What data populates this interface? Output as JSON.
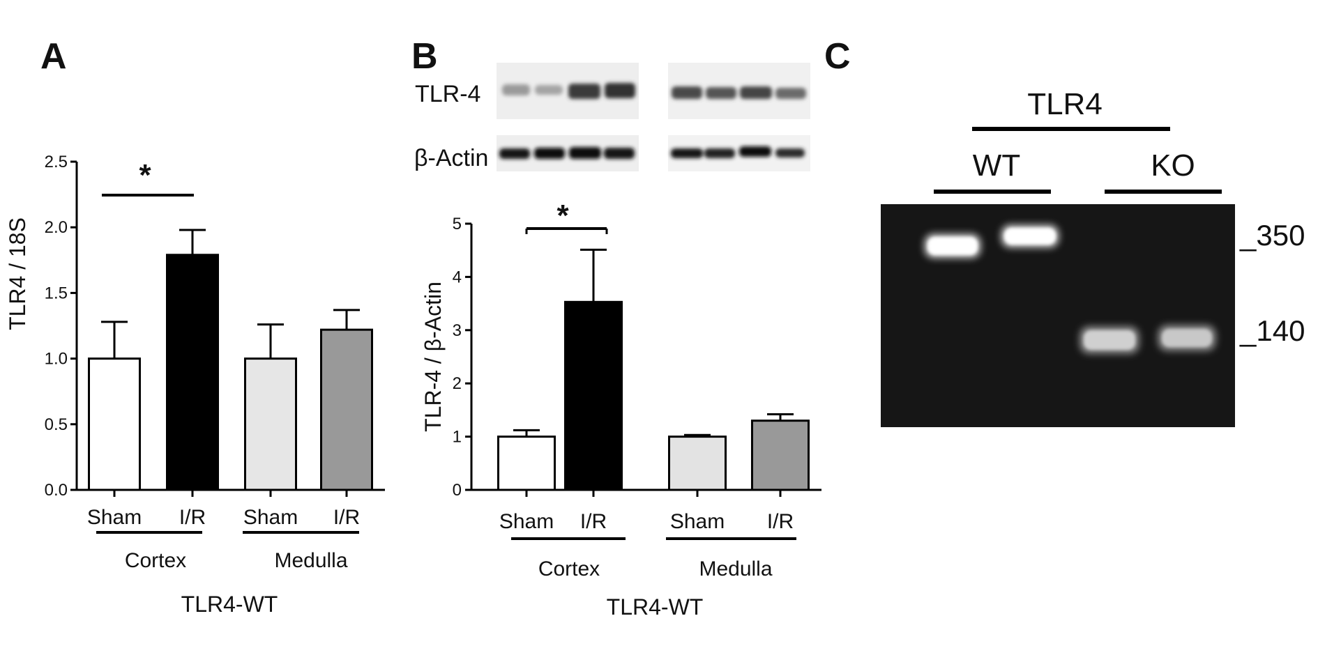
{
  "panels": {
    "a": "A",
    "b": "B",
    "c": "C"
  },
  "chart_data": [
    {
      "type": "bar",
      "panel": "A",
      "ylabel": "TLR4 / 18S",
      "ylim": [
        0,
        2.5
      ],
      "yticks": [
        "0.0",
        "0.5",
        "1.0",
        "1.5",
        "2.0",
        "2.5"
      ],
      "categories": [
        "Sham",
        "I/R",
        "Sham",
        "I/R"
      ],
      "values": [
        1.0,
        1.79,
        1.0,
        1.22
      ],
      "errors": [
        0.28,
        0.19,
        0.26,
        0.15
      ],
      "colors": [
        "#ffffff",
        "#000000",
        "#e6e6e6",
        "#999999"
      ],
      "groups": [
        "Cortex",
        "Medulla"
      ],
      "supergroup": "TLR4-WT",
      "significance": "*"
    },
    {
      "type": "bar",
      "panel": "B",
      "ylabel": "TLR-4 / β-Actin",
      "ylim": [
        0,
        5
      ],
      "yticks": [
        "0",
        "1",
        "2",
        "3",
        "4",
        "5"
      ],
      "categories": [
        "Sham",
        "I/R",
        "Sham",
        "I/R"
      ],
      "values": [
        1.0,
        3.53,
        1.0,
        1.3
      ],
      "errors": [
        0.12,
        0.98,
        0.03,
        0.12
      ],
      "colors": [
        "#ffffff",
        "#000000",
        "#e3e3e3",
        "#999999"
      ],
      "groups": [
        "Cortex",
        "Medulla"
      ],
      "supergroup": "TLR4-WT",
      "significance": "*"
    }
  ],
  "blot": {
    "label_top": "TLR-4",
    "label_bottom": "β-Actin"
  },
  "gel": {
    "header": "TLR4",
    "group_labels": [
      "WT",
      "KO"
    ],
    "markers": [
      "_350",
      "_140"
    ]
  }
}
